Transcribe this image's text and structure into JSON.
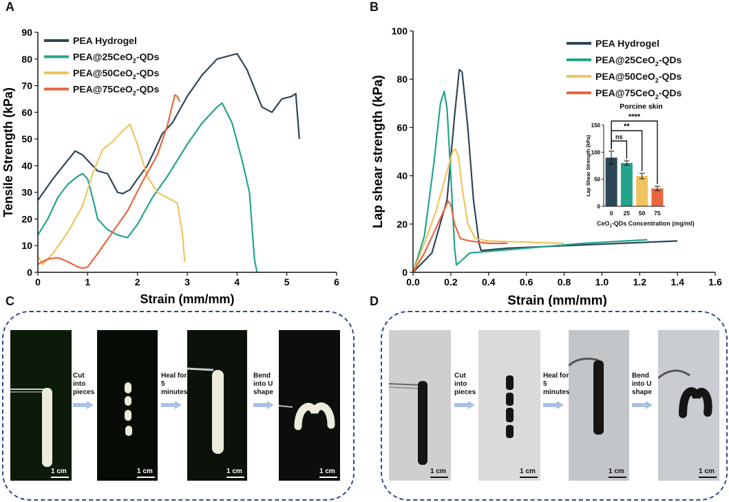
{
  "panels": {
    "A": "A",
    "B": "B",
    "C": "C",
    "D": "D"
  },
  "colors": {
    "pea": "#2d4656",
    "pea25": "#23a38c",
    "pea50": "#f0c35e",
    "pea75": "#e8653f",
    "axis": "#111111",
    "dash": "#2b4a8b",
    "arrow": "#a9c1e6"
  },
  "chart_data": [
    {
      "id": "A",
      "type": "line",
      "xlabel": "Strain (mm/mm)",
      "ylabel": "Tensile Strength (kPa)",
      "xlim": [
        0,
        6
      ],
      "ylim": [
        0,
        90
      ],
      "xticks": [
        0,
        1,
        2,
        3,
        4,
        5,
        6
      ],
      "yticks": [
        0,
        10,
        20,
        30,
        40,
        50,
        60,
        70,
        80,
        90
      ],
      "legend_position": "top-left",
      "series": [
        {
          "name": "PEA Hydrogel",
          "color": "#2d4656",
          "x": [
            0,
            0.3,
            0.6,
            0.75,
            0.9,
            1.0,
            1.2,
            1.4,
            1.6,
            1.7,
            1.85,
            2.0,
            2.2,
            2.5,
            2.7,
            3.0,
            3.3,
            3.6,
            3.8,
            4.0,
            4.2,
            4.5,
            4.7,
            4.9,
            5.1,
            5.18,
            5.25
          ],
          "y": [
            27,
            35,
            42,
            45.5,
            44,
            42,
            38,
            37,
            30,
            29.5,
            31,
            35,
            40,
            52,
            56,
            66,
            74,
            80,
            81,
            82,
            76,
            62,
            60,
            65,
            66,
            67,
            50
          ]
        },
        {
          "name": "PEA@25CeO2-QDs",
          "color": "#23a38c",
          "x": [
            0,
            0.2,
            0.4,
            0.6,
            0.8,
            0.9,
            1.0,
            1.1,
            1.2,
            1.4,
            1.6,
            1.8,
            2.0,
            2.3,
            2.6,
            3.0,
            3.3,
            3.6,
            3.7,
            3.9,
            4.1,
            4.25,
            4.35,
            4.4
          ],
          "y": [
            14,
            20,
            28,
            33,
            36,
            37,
            35,
            28,
            20,
            16,
            14,
            13,
            18,
            28,
            36,
            48,
            56,
            62,
            63.5,
            56,
            42,
            30,
            5,
            0
          ]
        },
        {
          "name": "PEA@50CeO2-QDs",
          "color": "#f0c35e",
          "x": [
            0,
            0.1,
            0.3,
            0.6,
            0.9,
            1.1,
            1.3,
            1.5,
            1.7,
            1.85,
            2.0,
            2.2,
            2.4,
            2.6,
            2.8,
            2.9,
            2.95
          ],
          "y": [
            6,
            3,
            7,
            15,
            25,
            37,
            46,
            49,
            53,
            55.5,
            48,
            36,
            30,
            28,
            26,
            15,
            4
          ]
        },
        {
          "name": "PEA@75CeO2-QDs",
          "color": "#e8653f",
          "x": [
            0,
            0.2,
            0.4,
            0.6,
            0.8,
            0.9,
            1.0,
            1.2,
            1.5,
            1.8,
            2.1,
            2.4,
            2.6,
            2.75,
            2.8,
            2.85
          ],
          "y": [
            3,
            5,
            5.5,
            4,
            2,
            1.5,
            2,
            7,
            15,
            23,
            34,
            44,
            55,
            66.5,
            66,
            64
          ]
        }
      ]
    },
    {
      "id": "B",
      "type": "line",
      "xlabel": "Strain (mm/mm)",
      "ylabel": "Lap shear strength (kPa)",
      "xlim": [
        0,
        1.6
      ],
      "ylim": [
        0,
        100
      ],
      "xticks": [
        0.0,
        0.2,
        0.4,
        0.6,
        0.8,
        1.0,
        1.2,
        1.4,
        1.6
      ],
      "yticks": [
        0,
        20,
        40,
        60,
        80,
        100
      ],
      "legend_position": "top-right",
      "series": [
        {
          "name": "PEA Hydrogel",
          "color": "#2d4656",
          "x": [
            0,
            0.1,
            0.18,
            0.22,
            0.245,
            0.26,
            0.29,
            0.32,
            0.35,
            0.36,
            0.5,
            0.8,
            1.1,
            1.4
          ],
          "y": [
            0,
            8,
            30,
            65,
            84,
            83,
            60,
            30,
            12,
            9,
            10,
            11,
            12,
            13
          ]
        },
        {
          "name": "PEA@25CeO2-QDs",
          "color": "#23a38c",
          "x": [
            0,
            0.06,
            0.11,
            0.145,
            0.165,
            0.18,
            0.2,
            0.22,
            0.23,
            0.3,
            0.6,
            0.9,
            1.24
          ],
          "y": [
            0,
            15,
            45,
            70,
            75,
            68,
            40,
            10,
            3,
            8,
            10,
            12,
            13.5
          ]
        },
        {
          "name": "PEA@50CeO2-QDs",
          "color": "#f0c35e",
          "x": [
            0,
            0.06,
            0.12,
            0.18,
            0.21,
            0.225,
            0.24,
            0.26,
            0.29,
            0.33,
            0.4,
            0.6,
            0.8
          ],
          "y": [
            0,
            12,
            25,
            42,
            50,
            51,
            48,
            35,
            20,
            14,
            13,
            12.5,
            12
          ]
        },
        {
          "name": "PEA@75CeO2-QDs",
          "color": "#e8653f",
          "x": [
            0,
            0.06,
            0.12,
            0.16,
            0.185,
            0.2,
            0.22,
            0.25,
            0.3,
            0.4,
            0.5
          ],
          "y": [
            0,
            8,
            18,
            25,
            29.5,
            28,
            20,
            14,
            13,
            12,
            12
          ]
        }
      ]
    },
    {
      "id": "B-inset",
      "type": "bar",
      "title": "Porcine skin",
      "xlabel": "CeO2-QDs Concentration (mg/ml)",
      "ylabel": "Lap Shear Strength (kPa)",
      "categories": [
        "0",
        "25",
        "50",
        "75"
      ],
      "values": [
        90,
        80,
        56,
        33
      ],
      "errors": [
        12,
        4,
        5,
        4
      ],
      "colors": [
        "#2d4656",
        "#23a38c",
        "#f0c35e",
        "#e8653f"
      ],
      "ylim": [
        0,
        150
      ],
      "yticks": [
        0,
        50,
        100,
        150
      ],
      "significance": [
        {
          "from": "0",
          "to": "25",
          "label": "ns"
        },
        {
          "from": "0",
          "to": "50",
          "label": "**"
        },
        {
          "from": "0",
          "to": "75",
          "label": "****"
        }
      ]
    }
  ],
  "legend_labels": [
    {
      "base": "PEA Hydrogel",
      "sub": "",
      "rest": ""
    },
    {
      "base": "PEA@25CeO",
      "sub": "2",
      "rest": "-QDs"
    },
    {
      "base": "PEA@50CeO",
      "sub": "2",
      "rest": "-QDs"
    },
    {
      "base": "PEA@75CeO",
      "sub": "2",
      "rest": "-QDs"
    }
  ],
  "inset_xlabel_parts": {
    "base": "CeO",
    "sub": "2",
    "rest": "-QDs Concentration (mg/ml)"
  },
  "steps": [
    {
      "line1": "Cut",
      "line2": "into",
      "line3": "pieces"
    },
    {
      "line1": "Heal for",
      "line2": "5",
      "line3": "minutes"
    },
    {
      "line1": "Bend",
      "line2": "into U",
      "line3": "shape"
    }
  ],
  "scale_label": "1 cm"
}
